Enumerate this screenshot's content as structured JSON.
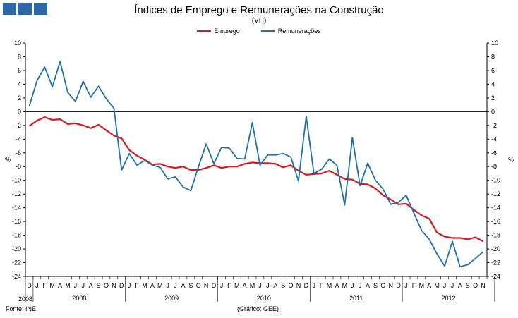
{
  "chart_data": {
    "type": "line",
    "title": "Índices de Emprego e Remunerações na Construção",
    "subtitle": "(VH)",
    "ylabel": "%",
    "ylim": [
      -24,
      10
    ],
    "yticks": [
      10,
      8,
      6,
      4,
      2,
      0,
      -2,
      -4,
      -6,
      -8,
      -10,
      -12,
      -14,
      -16,
      -18,
      -20,
      -22,
      -24
    ],
    "month_labels": [
      "D",
      "J",
      "F",
      "M",
      "A",
      "M",
      "J",
      "J",
      "A",
      "S",
      "O",
      "N",
      "D",
      "J",
      "F",
      "M",
      "A",
      "M",
      "J",
      "J",
      "A",
      "S",
      "O",
      "N",
      "D",
      "J",
      "F",
      "M",
      "A",
      "M",
      "J",
      "J",
      "A",
      "S",
      "O",
      "N",
      "D",
      "J",
      "F",
      "M",
      "A",
      "M",
      "J",
      "J",
      "A",
      "S",
      "O",
      "N",
      "D",
      "J",
      "F",
      "M",
      "A",
      "M",
      "J",
      "J",
      "A",
      "S",
      "O",
      "N"
    ],
    "year_labels": [
      "2008",
      "2008",
      "2009",
      "2010",
      "2011",
      "2012"
    ],
    "legend_position": "top-center",
    "grid": false,
    "series": [
      {
        "name": "Emprego",
        "color": "#d7191c",
        "values": [
          -2.1,
          -1.3,
          -0.8,
          -1.2,
          -1.1,
          -1.8,
          -1.7,
          -2.0,
          -2.4,
          -1.9,
          -2.7,
          -3.5,
          -3.9,
          -5.6,
          -6.4,
          -7.0,
          -7.7,
          -7.6,
          -8.0,
          -8.2,
          -8.0,
          -8.5,
          -8.5,
          -8.2,
          -7.8,
          -8.2,
          -8.0,
          -8.0,
          -7.6,
          -7.4,
          -7.5,
          -7.5,
          -7.6,
          -8.1,
          -7.8,
          -8.6,
          -9.2,
          -9.1,
          -9.0,
          -8.6,
          -9.2,
          -9.8,
          -9.9,
          -10.5,
          -10.6,
          -11.2,
          -12.2,
          -12.8,
          -13.5,
          -13.4,
          -14.3,
          -15.1,
          -15.6,
          -17.6,
          -18.2,
          -18.4,
          -18.4,
          -18.6,
          -18.3,
          -18.9
        ]
      },
      {
        "name": "Remunerações",
        "color": "#1f6fa8",
        "values": [
          0.8,
          4.5,
          6.5,
          3.6,
          7.3,
          2.8,
          1.5,
          4.4,
          2.1,
          3.7,
          1.9,
          0.5,
          -8.5,
          -6.1,
          -7.8,
          -7.1,
          -7.8,
          -8.1,
          -9.8,
          -9.5,
          -11.0,
          -11.5,
          -8.0,
          -4.7,
          -7.6,
          -5.2,
          -5.3,
          -6.8,
          -6.9,
          -1.6,
          -7.8,
          -6.3,
          -6.3,
          -6.1,
          -6.6,
          -10.1,
          -0.7,
          -9.0,
          -8.4,
          -6.9,
          -7.8,
          -13.6,
          -3.8,
          -10.8,
          -7.5,
          -10.0,
          -11.3,
          -13.5,
          -13.2,
          -12.2,
          -14.8,
          -17.3,
          -18.6,
          -20.7,
          -22.5,
          -18.9,
          -22.6,
          -22.3,
          -21.4,
          -20.4
        ]
      }
    ],
    "source": "Fonte: INE",
    "credit": "(Gráfico: GEE)"
  }
}
